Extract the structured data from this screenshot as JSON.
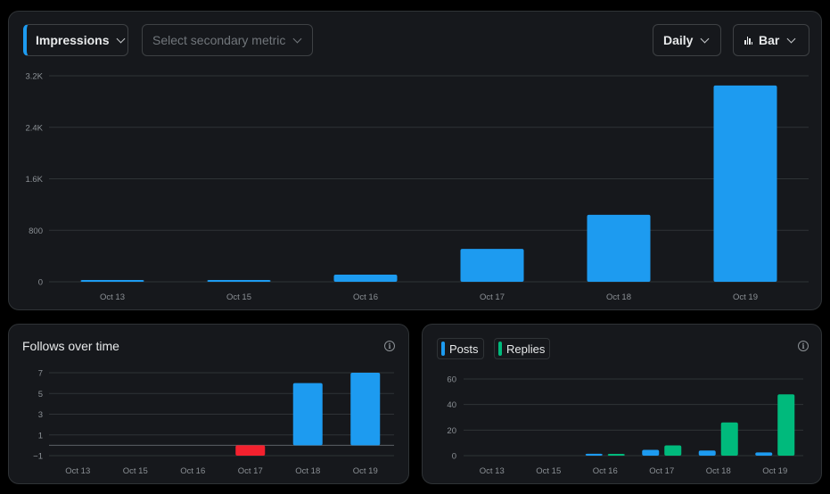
{
  "controls": {
    "primary_metric": "Impressions",
    "secondary_placeholder": "Select secondary metric",
    "interval": "Daily",
    "chart_type": "Bar"
  },
  "follows": {
    "title": "Follows over time",
    "info": "i"
  },
  "posts_replies": {
    "info": "i"
  },
  "colors": {
    "blue": "#1d9bf0",
    "green": "#00ba7c",
    "red": "#f4212e",
    "panel": "#16181c",
    "grid": "#2f3336"
  },
  "chart_data": [
    {
      "type": "bar",
      "categories": [
        "Oct 13",
        "Oct 15",
        "Oct 16",
        "Oct 17",
        "Oct 18",
        "Oct 19"
      ],
      "series": [
        {
          "name": "Impressions",
          "values": [
            25,
            15,
            110,
            510,
            1040,
            3050
          ]
        }
      ],
      "yticks": [
        "0",
        "800",
        "1.6K",
        "2.4K",
        "3.2K"
      ],
      "ylim": [
        0,
        3200
      ],
      "grid": true
    },
    {
      "type": "bar",
      "categories": [
        "Oct 13",
        "Oct 15",
        "Oct 16",
        "Oct 17",
        "Oct 18",
        "Oct 19"
      ],
      "series": [
        {
          "name": "",
          "values": [
            0,
            0,
            0,
            -1,
            6,
            7
          ]
        }
      ],
      "yticks": [
        "−1",
        "1",
        "3",
        "5",
        "7"
      ],
      "ylim": [
        -1,
        7
      ],
      "grid": true
    },
    {
      "type": "bar",
      "categories": [
        "Oct 13",
        "Oct 15",
        "Oct 16",
        "Oct 17",
        "Oct 18",
        "Oct 19"
      ],
      "series": [
        {
          "name": "Posts",
          "values": [
            0,
            0,
            1.5,
            4.5,
            4,
            2.5
          ]
        },
        {
          "name": "Replies",
          "values": [
            0,
            0,
            0.5,
            8,
            26,
            48
          ]
        }
      ],
      "yticks": [
        "0",
        "20",
        "40",
        "60"
      ],
      "ylim": [
        0,
        60
      ],
      "grid": true,
      "legend": "top-left"
    }
  ]
}
